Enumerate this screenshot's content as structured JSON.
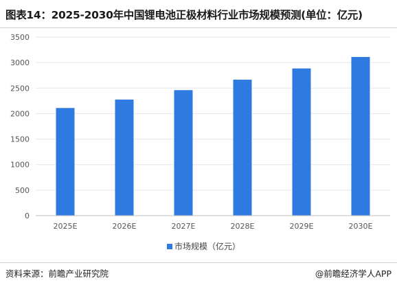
{
  "title": "图表14：2025-2030年中国锂电池正极材料行业市场规模预测(单位：亿元)",
  "source": "资料来源：前瞻产业研究院",
  "brand": "@前瞻经济学人APP",
  "colors": {
    "bar": "#2f7ae0",
    "grid": "#e6e6e6",
    "axis": "#bfbfbf"
  },
  "chart_data": {
    "type": "bar",
    "categories": [
      "2025E",
      "2026E",
      "2027E",
      "2028E",
      "2029E",
      "2030E"
    ],
    "series": [
      {
        "name": "市场规模（亿元）",
        "values": [
          2110,
          2275,
          2460,
          2665,
          2885,
          3110
        ]
      }
    ],
    "ylim": [
      0,
      3500
    ],
    "yticks": [
      0,
      500,
      1000,
      1500,
      2000,
      2500,
      3000,
      3500
    ],
    "grid": true,
    "legend": "bottom-center"
  }
}
